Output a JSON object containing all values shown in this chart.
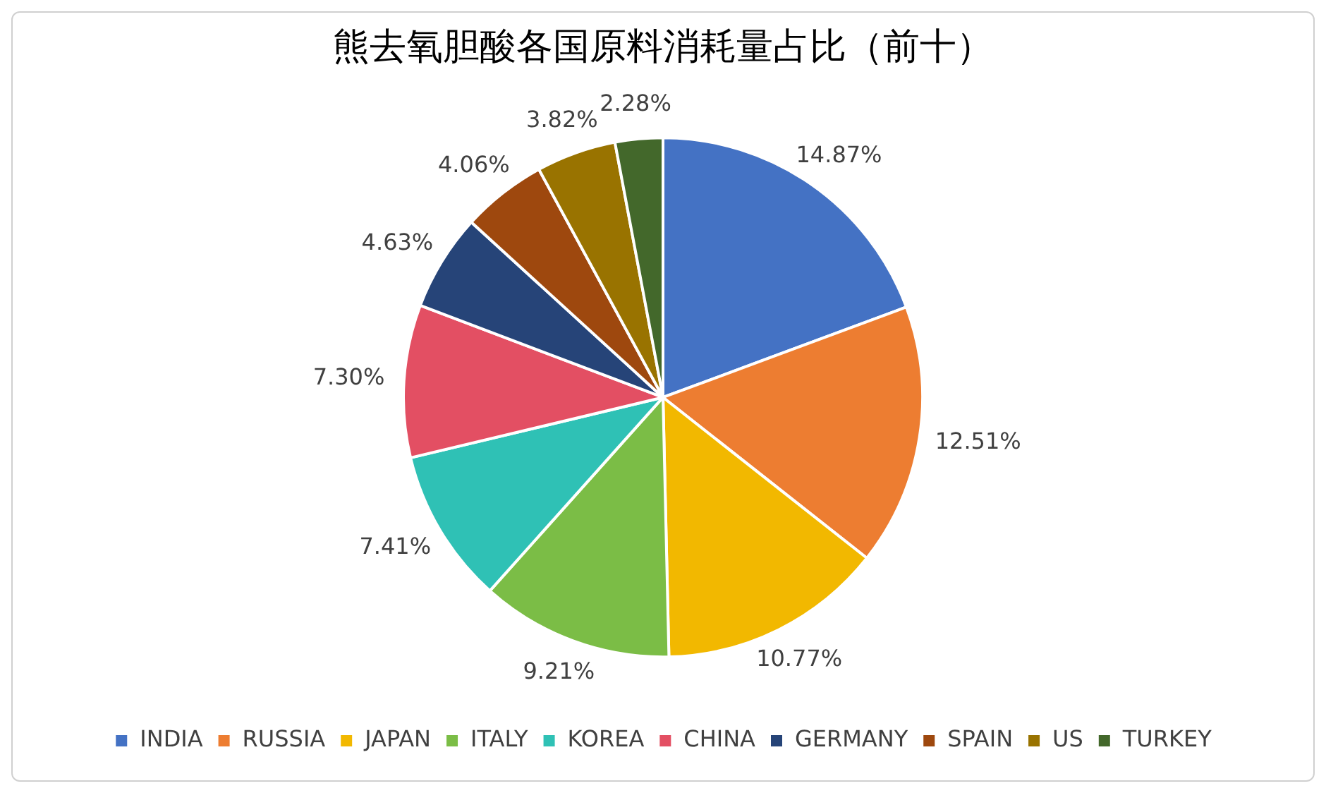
{
  "chart_data": {
    "type": "pie",
    "title": "熊去氧胆酸各国原料消耗量占比（前十）",
    "categories": [
      "INDIA",
      "RUSSIA",
      "JAPAN",
      "ITALY",
      "KOREA",
      "CHINA",
      "GERMANY",
      "SPAIN",
      "US",
      "TURKEY"
    ],
    "values": [
      14.87,
      12.51,
      10.77,
      9.21,
      7.41,
      7.3,
      4.63,
      4.06,
      3.82,
      2.28
    ],
    "value_labels": [
      "14.87%",
      "12.51%",
      "10.77%",
      "9.21%",
      "7.41%",
      "7.30%",
      "4.63%",
      "4.06%",
      "3.82%",
      "2.28%"
    ],
    "colors": [
      "#4472c4",
      "#ed7d31",
      "#f2b800",
      "#7bbd46",
      "#2fc1b5",
      "#e34f63",
      "#264478",
      "#9e480e",
      "#997300",
      "#43682b"
    ],
    "legend": "bottom"
  }
}
